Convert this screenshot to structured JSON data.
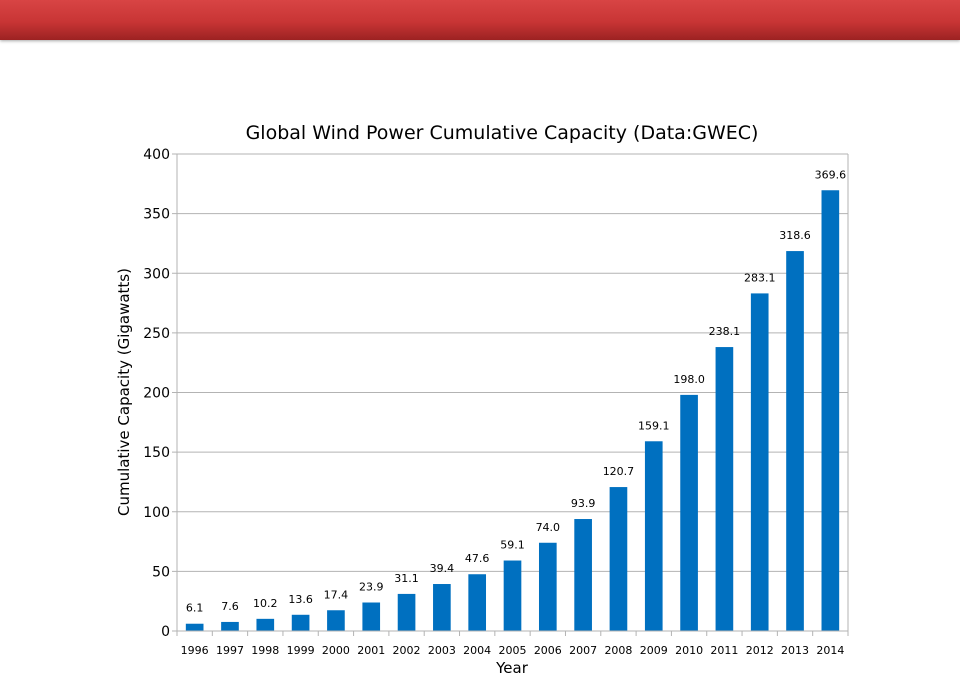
{
  "chart_data": {
    "type": "bar",
    "title": "Global Wind Power Cumulative Capacity (Data:GWEC)",
    "xlabel": "Year",
    "ylabel": "Cumulative Capacity (Gigawatts)",
    "categories": [
      "1996",
      "1997",
      "1998",
      "1999",
      "2000",
      "2001",
      "2002",
      "2003",
      "2004",
      "2005",
      "2006",
      "2007",
      "2008",
      "2009",
      "2010",
      "2011",
      "2012",
      "2013",
      "2014"
    ],
    "values": [
      6.1,
      7.6,
      10.2,
      13.6,
      17.4,
      23.9,
      31.1,
      39.4,
      47.6,
      59.1,
      74.0,
      93.9,
      120.7,
      159.1,
      198.0,
      238.1,
      283.1,
      318.6,
      369.6
    ],
    "data_labels": [
      "6.1",
      "7.6",
      "10.2",
      "13.6",
      "17.4",
      "23.9",
      "31.1",
      "39.4",
      "47.6",
      "59.1",
      "74.0",
      "93.9",
      "120.7",
      "159.1",
      "198.0",
      "238.1",
      "283.1",
      "318.6",
      "369.6"
    ],
    "ylim": [
      0,
      400
    ],
    "yticks": [
      0,
      50,
      100,
      150,
      200,
      250,
      300,
      350,
      400
    ],
    "ytick_labels": [
      "0",
      "50",
      "100",
      "150",
      "200",
      "250",
      "300",
      "350",
      "400"
    ],
    "grid": true,
    "legend": "none",
    "bar_color": "#0070c0"
  },
  "colors": {
    "banner": "#c83535",
    "bar": "#0070c0",
    "grid": "#b3b3b3"
  }
}
